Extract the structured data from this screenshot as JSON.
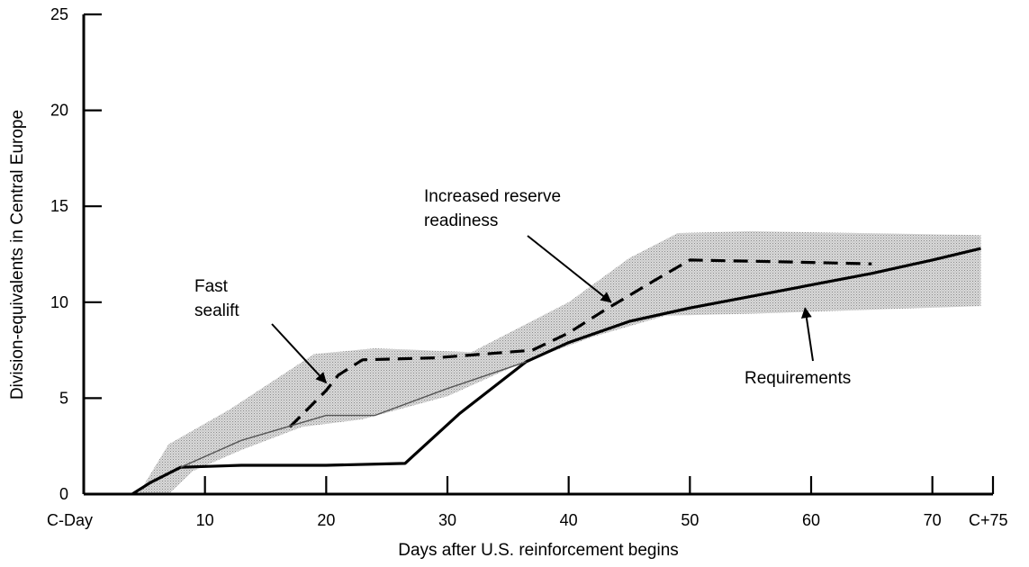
{
  "chart_data": {
    "type": "line",
    "title": "",
    "xlabel": "Days after U.S. reinforcement begins",
    "ylabel": "Division-equivalents in Central Europe",
    "xlim": [
      0,
      75
    ],
    "ylim": [
      0,
      25
    ],
    "x_ticks": [
      {
        "value": 0,
        "label": "C-Day"
      },
      {
        "value": 10,
        "label": "10"
      },
      {
        "value": 20,
        "label": "20"
      },
      {
        "value": 30,
        "label": "30"
      },
      {
        "value": 40,
        "label": "40"
      },
      {
        "value": 50,
        "label": "50"
      },
      {
        "value": 60,
        "label": "60"
      },
      {
        "value": 70,
        "label": "70"
      },
      {
        "value": 75,
        "label": "C+75"
      }
    ],
    "y_ticks": [
      {
        "value": 0,
        "label": "0"
      },
      {
        "value": 5,
        "label": "5"
      },
      {
        "value": 10,
        "label": "10"
      },
      {
        "value": 15,
        "label": "15"
      },
      {
        "value": 20,
        "label": "20"
      },
      {
        "value": 25,
        "label": "25"
      }
    ],
    "grid": false,
    "legend": "none",
    "series": [
      {
        "name": "Requirements",
        "style": "solid",
        "color": "#000000",
        "points": [
          [
            4,
            0
          ],
          [
            5.5,
            0.6
          ],
          [
            8,
            1.4
          ],
          [
            13,
            1.5
          ],
          [
            20,
            1.5
          ],
          [
            26.5,
            1.6
          ],
          [
            31,
            4.2
          ],
          [
            36.5,
            6.9
          ],
          [
            40,
            7.9
          ],
          [
            45,
            9
          ],
          [
            50,
            9.7
          ],
          [
            55,
            10.3
          ],
          [
            60,
            10.9
          ],
          [
            65,
            11.5
          ],
          [
            70,
            12.2
          ],
          [
            74,
            12.8
          ]
        ]
      },
      {
        "name": "Fast sealift",
        "style": "dashed",
        "color": "#000000",
        "points": [
          [
            17,
            3.5
          ],
          [
            20,
            5.4
          ],
          [
            21,
            6.2
          ],
          [
            23,
            7
          ],
          [
            29,
            7.1
          ],
          [
            33,
            7.3
          ],
          [
            37,
            7.5
          ],
          [
            40,
            8.4
          ],
          [
            43,
            9.6
          ],
          [
            47,
            11.1
          ],
          [
            50,
            12.2
          ],
          [
            58,
            12.1
          ],
          [
            65,
            12
          ]
        ]
      },
      {
        "name": "thin-lower-line",
        "style": "thin",
        "color": "#555555",
        "points": [
          [
            8,
            1.4
          ],
          [
            13,
            2.8
          ],
          [
            20,
            4.1
          ],
          [
            24,
            4.1
          ],
          [
            30,
            5.5
          ],
          [
            36.5,
            6.9
          ]
        ]
      }
    ],
    "bands": [
      {
        "name": "uncertainty-band",
        "color": "#c8c8c8",
        "upper": [
          [
            4.5,
            0
          ],
          [
            7,
            2.6
          ],
          [
            12,
            4.4
          ],
          [
            19,
            7.3
          ],
          [
            24,
            7.6
          ],
          [
            32,
            7.4
          ],
          [
            40,
            10
          ],
          [
            45,
            12.3
          ],
          [
            49,
            13.6
          ],
          [
            55,
            13.7
          ],
          [
            74,
            13.5
          ]
        ],
        "lower": [
          [
            74,
            9.8
          ],
          [
            55,
            9.4
          ],
          [
            48,
            9.3
          ],
          [
            42,
            8.2
          ],
          [
            36,
            6.8
          ],
          [
            30,
            5.1
          ],
          [
            23,
            3.9
          ],
          [
            18,
            3.5
          ],
          [
            13,
            2.3
          ],
          [
            9,
            1.2
          ],
          [
            7,
            0
          ]
        ]
      }
    ],
    "annotations": [
      {
        "name": "increased-reserve-readiness",
        "lines": [
          "Increased reserve",
          "readiness"
        ],
        "arrow_to": [
          43.5,
          10
        ]
      },
      {
        "name": "fast-sealift",
        "lines": [
          "Fast",
          "sealift"
        ],
        "arrow_to": [
          20,
          5.8
        ]
      },
      {
        "name": "requirements",
        "lines": [
          "Requirements"
        ],
        "arrow_to": [
          59.5,
          9.7
        ]
      }
    ]
  }
}
